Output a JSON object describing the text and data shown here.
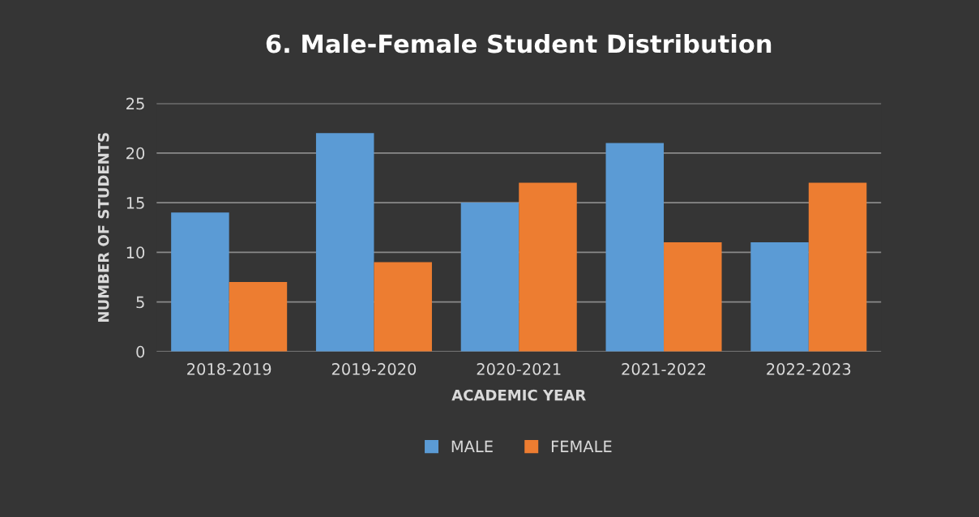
{
  "chart_data": {
    "type": "bar",
    "title": "6. Male-Female Student Distribution",
    "xlabel": "ACADEMIC YEAR",
    "ylabel": "NUMBER OF STUDENTS",
    "categories": [
      "2018-2019",
      "2019-2020",
      "2020-2021",
      "2021-2022",
      "2022-2023"
    ],
    "series": [
      {
        "name": "MALE",
        "color": "#5b9bd5",
        "values": [
          14,
          22,
          15,
          21,
          11
        ]
      },
      {
        "name": "FEMALE",
        "color": "#ed7d31",
        "values": [
          7,
          9,
          17,
          11,
          17
        ]
      }
    ],
    "ylim": [
      0,
      25
    ],
    "yticks": [
      0,
      5,
      10,
      15,
      20,
      25
    ],
    "grid": "y",
    "legend": "bottom"
  }
}
